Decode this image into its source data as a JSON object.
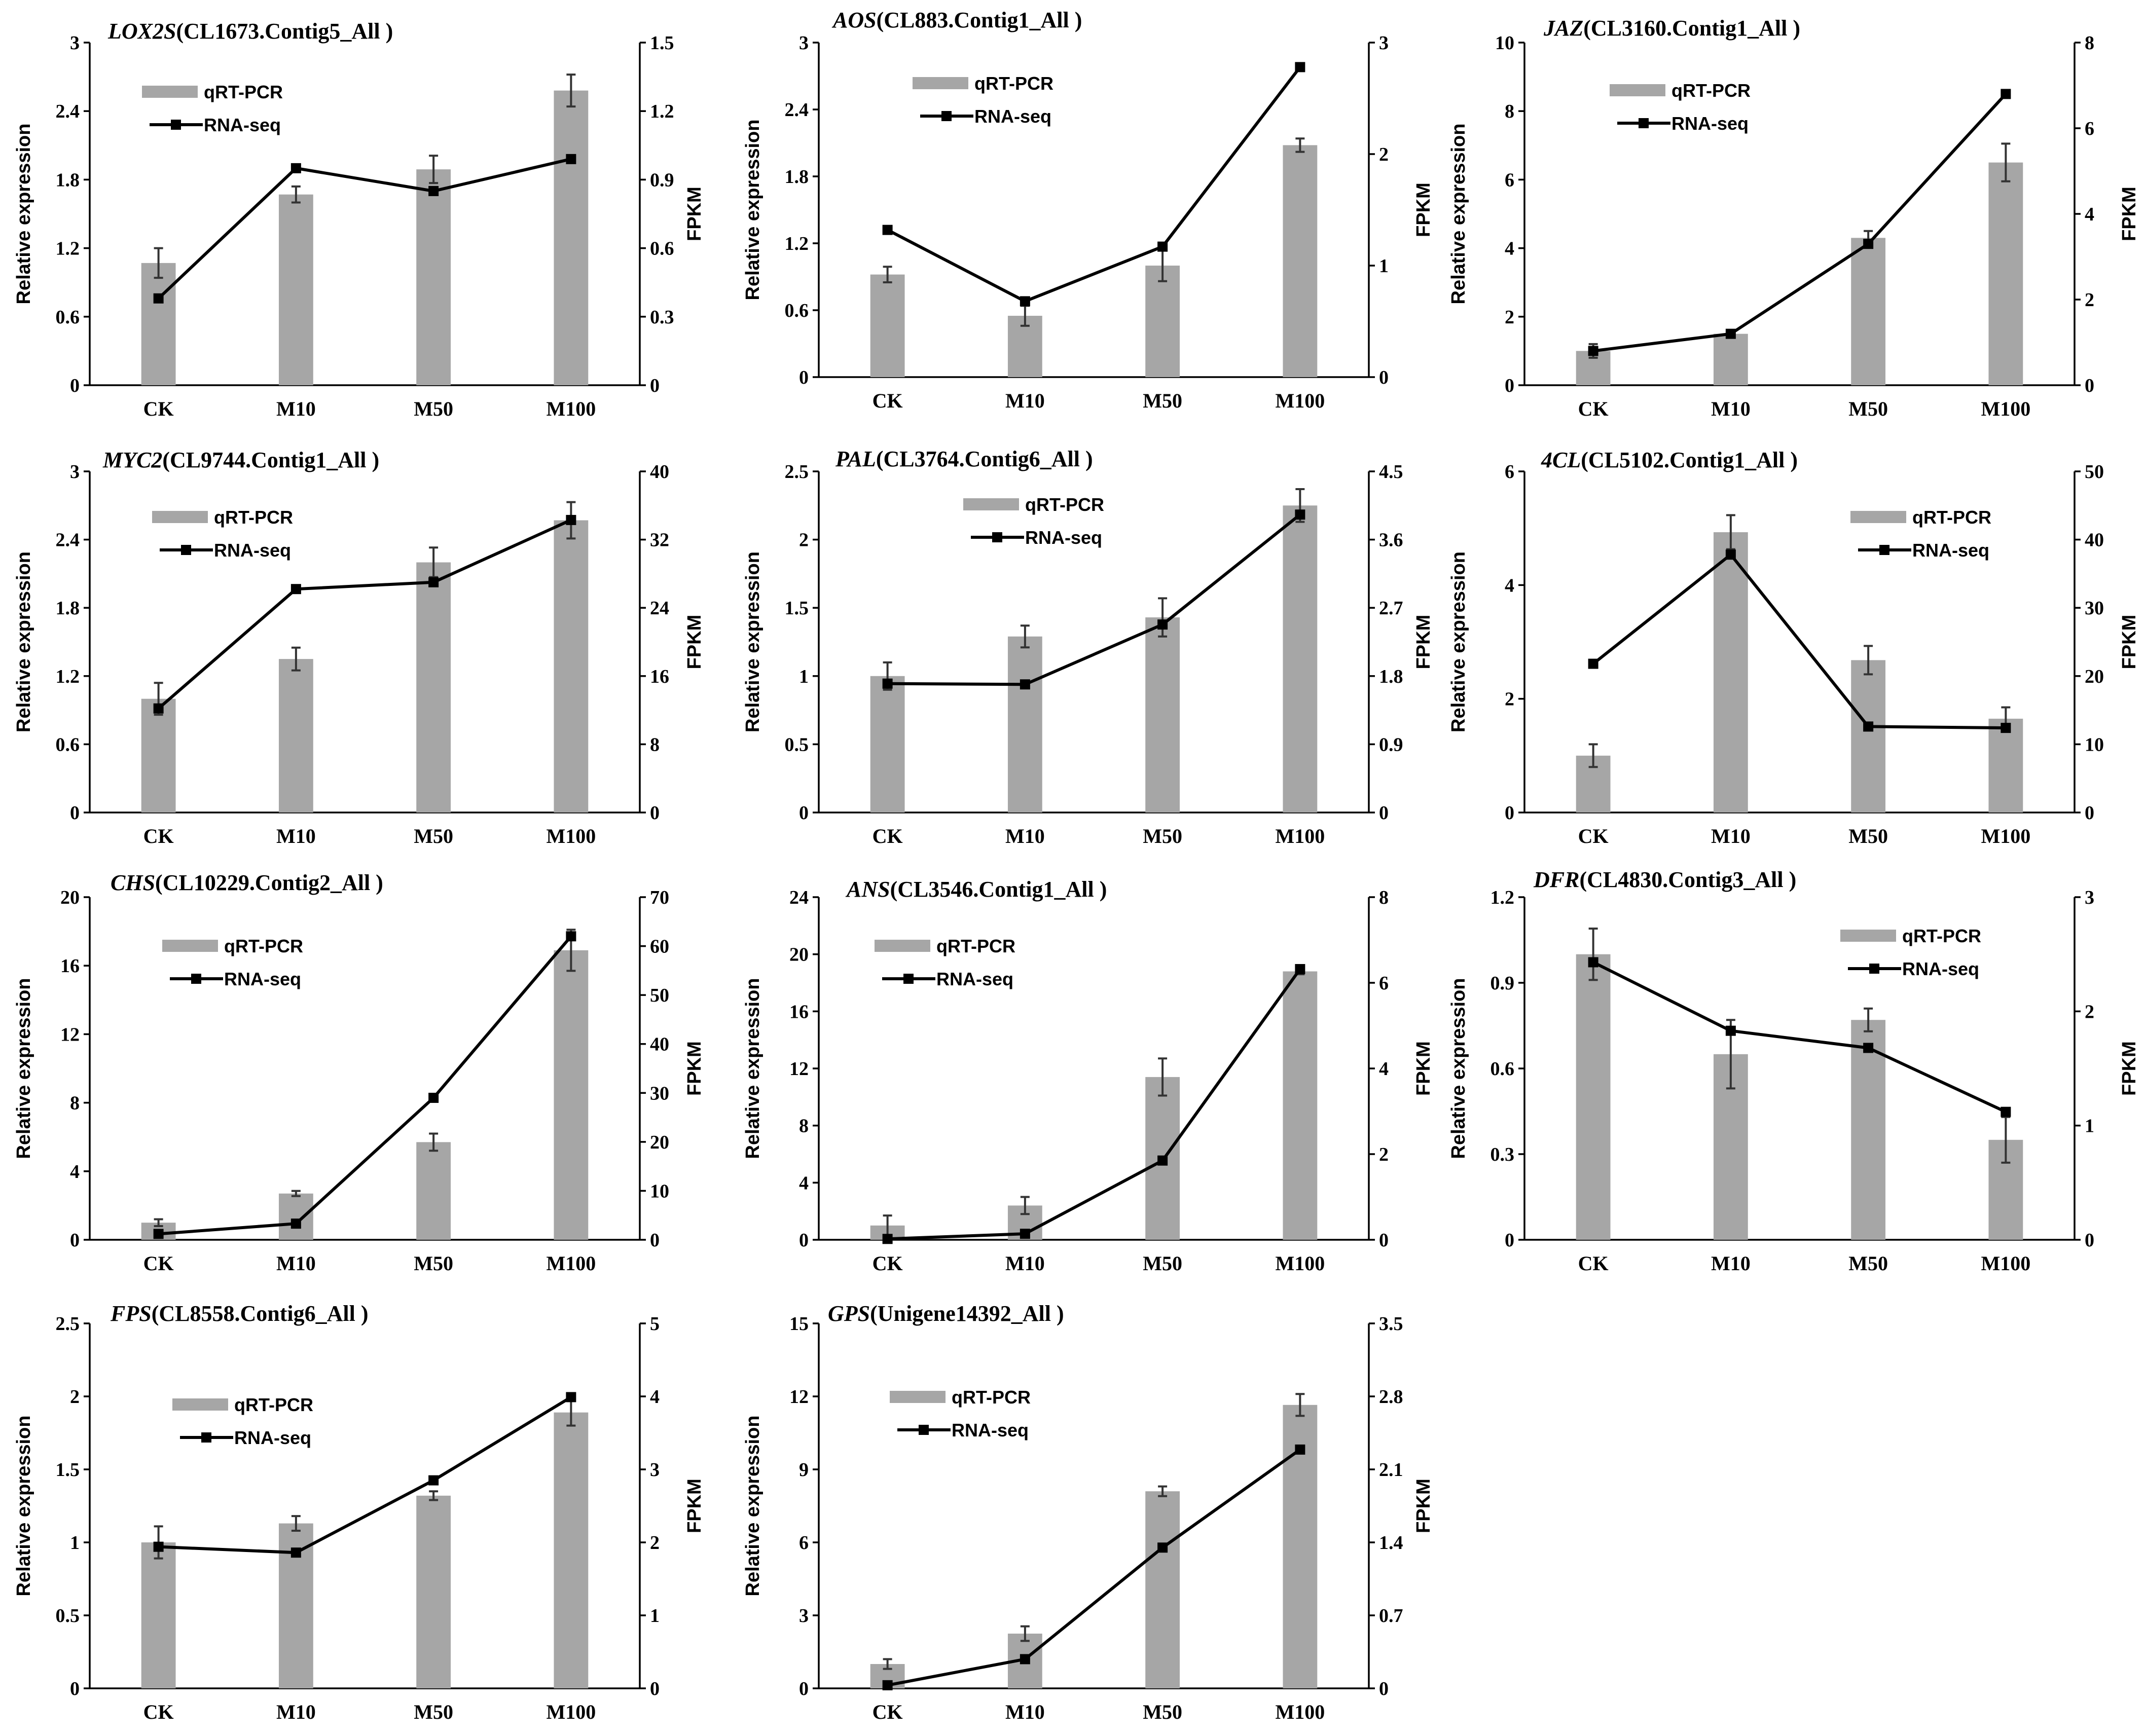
{
  "chart_data": [
    {
      "type": "bar+line",
      "gene": "LOX2S",
      "locus": "(CL1673.Contig5_All )",
      "categories": [
        "CK",
        "M10",
        "M50",
        "M100"
      ],
      "ylabel": "Relative expression",
      "y2label": "FPKM",
      "left_ticks": [
        "0",
        "0.6",
        "1.2",
        "1.8",
        "2.4",
        "3"
      ],
      "right_ticks": [
        "0",
        "0.3",
        "0.6",
        "0.9",
        "1.2",
        "1.5"
      ],
      "ylim": [
        0,
        3
      ],
      "y2lim": [
        0,
        1.5
      ],
      "series": [
        {
          "name": "qRT-PCR",
          "values": [
            1.07,
            1.67,
            1.89,
            2.58
          ],
          "errors": [
            0.13,
            0.07,
            0.12,
            0.14
          ]
        },
        {
          "name": "RNA-seq",
          "values": [
            0.38,
            0.95,
            0.85,
            0.99
          ]
        }
      ],
      "legend": [
        "qRT-PCR",
        "RNA-seq"
      ]
    },
    {
      "type": "bar+line",
      "gene": "AOS",
      "locus": "(CL883.Contig1_All )",
      "categories": [
        "CK",
        "M10",
        "M50",
        "M100"
      ],
      "ylabel": "Relative expression",
      "y2label": "FPKM",
      "left_ticks": [
        "0",
        "0.6",
        "1.2",
        "1.8",
        "2.4",
        "3"
      ],
      "right_ticks": [
        "0",
        "1",
        "2",
        "3"
      ],
      "ylim": [
        0,
        3
      ],
      "y2lim": [
        0,
        3
      ],
      "series": [
        {
          "name": "qRT-PCR",
          "values": [
            0.92,
            0.55,
            1.0,
            2.08
          ],
          "errors": [
            0.07,
            0.09,
            0.14,
            0.06
          ]
        },
        {
          "name": "RNA-seq",
          "values": [
            1.32,
            0.68,
            1.17,
            2.78
          ]
        }
      ],
      "legend": [
        "qRT-PCR",
        "RNA-seq"
      ]
    },
    {
      "type": "bar+line",
      "gene": "JAZ",
      "locus": "(CL3160.Contig1_All )",
      "categories": [
        "CK",
        "M10",
        "M50",
        "M100"
      ],
      "ylabel": "Relative expression",
      "y2label": "FPKM",
      "left_ticks": [
        "0",
        "2",
        "4",
        "6",
        "8",
        "10"
      ],
      "right_ticks": [
        "0",
        "2",
        "4",
        "6",
        "8"
      ],
      "ylim": [
        0,
        10
      ],
      "y2lim": [
        0,
        8
      ],
      "series": [
        {
          "name": "qRT-PCR",
          "values": [
            1.0,
            1.5,
            4.3,
            6.5
          ],
          "errors": [
            0.2,
            0.1,
            0.2,
            0.55
          ]
        },
        {
          "name": "RNA-seq",
          "values": [
            0.8,
            1.2,
            3.3,
            6.8
          ]
        }
      ],
      "legend": [
        "qRT-PCR",
        "RNA-seq"
      ]
    },
    {
      "type": "bar+line",
      "gene": "MYC2",
      "locus": "(CL9744.Contig1_All )",
      "categories": [
        "CK",
        "M10",
        "M50",
        "M100"
      ],
      "ylabel": "Relative expression",
      "y2label": "FPKM",
      "left_ticks": [
        "0",
        "0.6",
        "1.2",
        "1.8",
        "2.4",
        "3"
      ],
      "right_ticks": [
        "0",
        "8",
        "16",
        "24",
        "32",
        "40"
      ],
      "ylim": [
        0,
        3
      ],
      "y2lim": [
        0,
        40
      ],
      "series": [
        {
          "name": "qRT-PCR",
          "values": [
            1.0,
            1.35,
            2.2,
            2.57
          ],
          "errors": [
            0.14,
            0.1,
            0.13,
            0.16
          ]
        },
        {
          "name": "RNA-seq",
          "values": [
            12.2,
            26.2,
            27.0,
            34.3
          ]
        }
      ],
      "legend": [
        "qRT-PCR",
        "RNA-seq"
      ]
    },
    {
      "type": "bar+line",
      "gene": "PAL",
      "locus": "(CL3764.Contig6_All )",
      "categories": [
        "CK",
        "M10",
        "M50",
        "M100"
      ],
      "ylabel": "Relative expression",
      "y2label": "FPKM",
      "left_ticks": [
        "0",
        "0.5",
        "1",
        "1.5",
        "2",
        "2.5"
      ],
      "right_ticks": [
        "0",
        "0.9",
        "1.8",
        "2.7",
        "3.6",
        "4.5"
      ],
      "ylim": [
        0,
        2.5
      ],
      "y2lim": [
        0,
        4.5
      ],
      "series": [
        {
          "name": "qRT-PCR",
          "values": [
            1.0,
            1.29,
            1.43,
            2.25
          ],
          "errors": [
            0.1,
            0.08,
            0.14,
            0.12
          ]
        },
        {
          "name": "RNA-seq",
          "values": [
            1.7,
            1.69,
            2.48,
            3.93
          ]
        }
      ],
      "legend": [
        "qRT-PCR",
        "RNA-seq"
      ]
    },
    {
      "type": "bar+line",
      "gene": "4CL",
      "locus": "(CL5102.Contig1_All )",
      "categories": [
        "CK",
        "M10",
        "M50",
        "M100"
      ],
      "ylabel": "Relative expression",
      "y2label": "FPKM",
      "left_ticks": [
        "0",
        "2",
        "4",
        "6"
      ],
      "right_ticks": [
        "0",
        "10",
        "20",
        "30",
        "40",
        "50"
      ],
      "ylim": [
        0,
        6
      ],
      "y2lim": [
        0,
        50
      ],
      "series": [
        {
          "name": "qRT-PCR",
          "values": [
            1.0,
            4.93,
            2.68,
            1.65
          ],
          "errors": [
            0.2,
            0.3,
            0.25,
            0.2
          ]
        },
        {
          "name": "RNA-seq",
          "values": [
            21.8,
            37.8,
            12.6,
            12.4
          ]
        }
      ],
      "legend": [
        "qRT-PCR",
        "RNA-seq"
      ]
    },
    {
      "type": "bar+line",
      "gene": "CHS",
      "locus": "(CL10229.Contig2_All )",
      "categories": [
        "CK",
        "M10",
        "M50",
        "M100"
      ],
      "ylabel": "Relative expression",
      "y2label": "FPKM",
      "left_ticks": [
        "0",
        "4",
        "8",
        "12",
        "16",
        "20"
      ],
      "right_ticks": [
        "0",
        "10",
        "20",
        "30",
        "40",
        "50",
        "60",
        "70"
      ],
      "ylim": [
        0,
        20
      ],
      "y2lim": [
        0,
        70
      ],
      "series": [
        {
          "name": "qRT-PCR",
          "values": [
            1.0,
            2.7,
            5.7,
            16.9
          ],
          "errors": [
            0.2,
            0.15,
            0.5,
            1.2
          ]
        },
        {
          "name": "RNA-seq",
          "values": [
            1.2,
            3.3,
            29.0,
            62.0
          ]
        }
      ],
      "legend": [
        "qRT-PCR",
        "RNA-seq"
      ]
    },
    {
      "type": "bar+line",
      "gene": "ANS",
      "locus": "(CL3546.Contig1_All )",
      "categories": [
        "CK",
        "M10",
        "M50",
        "M100"
      ],
      "ylabel": "Relative expression",
      "y2label": "FPKM",
      "left_ticks": [
        "0",
        "4",
        "8",
        "12",
        "16",
        "20",
        "24"
      ],
      "right_ticks": [
        "0",
        "2",
        "4",
        "6",
        "8"
      ],
      "ylim": [
        0,
        24
      ],
      "y2lim": [
        0,
        8
      ],
      "series": [
        {
          "name": "qRT-PCR",
          "values": [
            1.0,
            2.4,
            11.4,
            18.8
          ],
          "errors": [
            0.7,
            0.6,
            1.3,
            0.2
          ]
        },
        {
          "name": "RNA-seq",
          "values": [
            0.02,
            0.14,
            1.85,
            6.32
          ]
        }
      ],
      "legend": [
        "qRT-PCR",
        "RNA-seq"
      ]
    },
    {
      "type": "bar+line",
      "gene": "DFR",
      "locus": "(CL4830.Contig3_All )",
      "categories": [
        "CK",
        "M10",
        "M50",
        "M100"
      ],
      "ylabel": "Relative expression",
      "y2label": "FPKM",
      "left_ticks": [
        "0",
        "0.3",
        "0.6",
        "0.9",
        "1.2"
      ],
      "right_ticks": [
        "0",
        "1",
        "2",
        "3"
      ],
      "ylim": [
        0,
        1.2
      ],
      "y2lim": [
        0,
        3
      ],
      "series": [
        {
          "name": "qRT-PCR",
          "values": [
            1.0,
            0.65,
            0.77,
            0.35
          ],
          "errors": [
            0.09,
            0.12,
            0.04,
            0.08
          ]
        },
        {
          "name": "RNA-seq",
          "values": [
            2.43,
            1.83,
            1.68,
            1.12
          ]
        }
      ],
      "legend": [
        "qRT-PCR",
        "RNA-seq"
      ]
    },
    {
      "type": "bar+line",
      "gene": "FPS",
      "locus": "(CL8558.Contig6_All )",
      "categories": [
        "CK",
        "M10",
        "M50",
        "M100"
      ],
      "ylabel": "Relative expression",
      "y2label": "FPKM",
      "left_ticks": [
        "0",
        "0.5",
        "1",
        "1.5",
        "2",
        "2.5"
      ],
      "right_ticks": [
        "0",
        "1",
        "2",
        "3",
        "4",
        "5"
      ],
      "ylim": [
        0,
        2.5
      ],
      "y2lim": [
        0,
        5
      ],
      "series": [
        {
          "name": "qRT-PCR",
          "values": [
            1.0,
            1.13,
            1.32,
            1.89
          ],
          "errors": [
            0.11,
            0.05,
            0.03,
            0.09
          ]
        },
        {
          "name": "RNA-seq",
          "values": [
            1.94,
            1.86,
            2.85,
            3.99
          ]
        }
      ],
      "legend": [
        "qRT-PCR",
        "RNA-seq"
      ]
    },
    {
      "type": "bar+line",
      "gene": "GPS",
      "locus": "(Unigene14392_All )",
      "categories": [
        "CK",
        "M10",
        "M50",
        "M100"
      ],
      "ylabel": "Relative expression",
      "y2label": "FPKM",
      "left_ticks": [
        "0",
        "3",
        "6",
        "9",
        "12",
        "15"
      ],
      "right_ticks": [
        "0",
        "0.7",
        "1.4",
        "2.1",
        "2.8",
        "3.5"
      ],
      "ylim": [
        0,
        15
      ],
      "y2lim": [
        0,
        3.5
      ],
      "series": [
        {
          "name": "qRT-PCR",
          "values": [
            1.0,
            2.25,
            8.1,
            11.65
          ],
          "errors": [
            0.2,
            0.3,
            0.2,
            0.45
          ]
        },
        {
          "name": "RNA-seq",
          "values": [
            0.03,
            0.28,
            1.35,
            2.29
          ]
        }
      ],
      "legend": [
        "qRT-PCR",
        "RNA-seq"
      ]
    }
  ]
}
